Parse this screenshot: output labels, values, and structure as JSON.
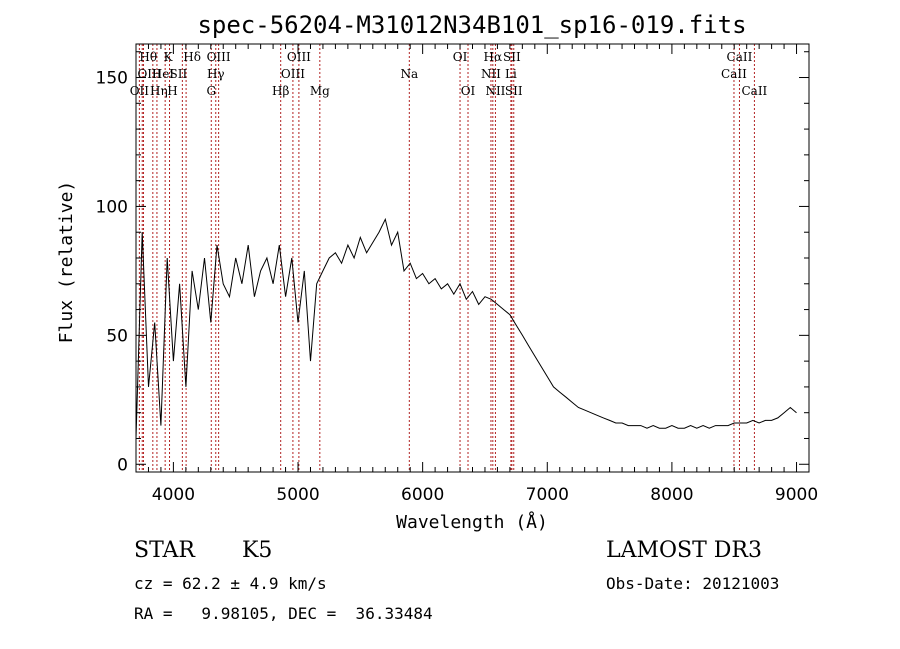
{
  "chart_data": {
    "type": "line",
    "title": "spec-56204-M31012N34B101_sp16-019.fits",
    "xlabel": "Wavelength (Å)",
    "ylabel": "Flux (relative)",
    "xlim": [
      3700,
      9100
    ],
    "ylim": [
      -3,
      163
    ],
    "xticks": [
      "4000",
      "5000",
      "6000",
      "7000",
      "8000",
      "9000"
    ],
    "yticks": [
      "0",
      "50",
      "100",
      "150"
    ],
    "x_tick_values": [
      4000,
      5000,
      6000,
      7000,
      8000,
      9000
    ],
    "y_tick_values": [
      0,
      50,
      100,
      150
    ],
    "series": [
      {
        "name": "flux",
        "color": "#000000",
        "x": [
          3700,
          3750,
          3800,
          3850,
          3900,
          3950,
          4000,
          4050,
          4100,
          4150,
          4200,
          4250,
          4300,
          4350,
          4400,
          4450,
          4500,
          4550,
          4600,
          4650,
          4700,
          4750,
          4800,
          4850,
          4900,
          4950,
          5000,
          5050,
          5100,
          5150,
          5200,
          5250,
          5300,
          5350,
          5400,
          5450,
          5500,
          5550,
          5600,
          5650,
          5700,
          5750,
          5800,
          5850,
          5900,
          5950,
          6000,
          6050,
          6100,
          6150,
          6200,
          6250,
          6300,
          6350,
          6400,
          6450,
          6500,
          6550,
          6600,
          6650,
          6700,
          6750,
          6800,
          6850,
          6900,
          6950,
          7000,
          7050,
          7100,
          7150,
          7200,
          7250,
          7300,
          7350,
          7400,
          7450,
          7500,
          7550,
          7600,
          7650,
          7700,
          7750,
          7800,
          7850,
          7900,
          7950,
          8000,
          8050,
          8100,
          8150,
          8200,
          8250,
          8300,
          8350,
          8400,
          8450,
          8500,
          8550,
          8600,
          8650,
          8700,
          8750,
          8800,
          8850,
          8900,
          8950,
          9000
        ],
        "y": [
          10,
          90,
          30,
          55,
          15,
          80,
          40,
          70,
          30,
          75,
          60,
          80,
          55,
          85,
          70,
          65,
          80,
          70,
          85,
          65,
          75,
          80,
          70,
          85,
          65,
          80,
          55,
          75,
          40,
          70,
          75,
          80,
          82,
          78,
          85,
          80,
          88,
          82,
          86,
          90,
          95,
          85,
          90,
          75,
          78,
          72,
          74,
          70,
          72,
          68,
          70,
          66,
          70,
          64,
          67,
          62,
          65,
          64,
          62,
          60,
          58,
          54,
          50,
          46,
          42,
          38,
          34,
          30,
          28,
          26,
          24,
          22,
          21,
          20,
          19,
          18,
          17,
          16,
          16,
          15,
          15,
          15,
          14,
          15,
          14,
          14,
          15,
          14,
          14,
          15,
          14,
          15,
          14,
          15,
          15,
          15,
          16,
          16,
          16,
          17,
          16,
          17,
          17,
          18,
          20,
          22,
          20
        ]
      }
    ],
    "lines": [
      {
        "label": "OII",
        "wl": 3727,
        "row": 2,
        "dx": 0
      },
      {
        "label": "Hθ",
        "wl": 3750,
        "row": 0,
        "dx": 6
      },
      {
        "label": "OIII",
        "wl": 3760,
        "row": 1,
        "dx": 6
      },
      {
        "label": "Hη",
        "wl": 3835,
        "row": 2,
        "dx": 6
      },
      {
        "label": "HeI",
        "wl": 3868,
        "row": 1,
        "dx": 6
      },
      {
        "label": "K",
        "wl": 3934,
        "row": 0,
        "dx": 3
      },
      {
        "label": "H",
        "wl": 3969,
        "row": 2,
        "dx": 3
      },
      {
        "label": "SII",
        "wl": 4072,
        "row": 1,
        "dx": -4
      },
      {
        "label": "Hδ",
        "wl": 4102,
        "row": 0,
        "dx": 6
      },
      {
        "label": "OIII",
        "wl": 4363,
        "row": 0,
        "dx": 0
      },
      {
        "label": "Hγ",
        "wl": 4340,
        "row": 1,
        "dx": 0
      },
      {
        "label": "G",
        "wl": 4304,
        "row": 2,
        "dx": 0
      },
      {
        "label": "Hβ",
        "wl": 4861,
        "row": 2,
        "dx": 0
      },
      {
        "label": "OIII",
        "wl": 5007,
        "row": 0,
        "dx": 0
      },
      {
        "label": "OIII",
        "wl": 4959,
        "row": 1,
        "dx": 0
      },
      {
        "label": "Mg",
        "wl": 5175,
        "row": 2,
        "dx": 0
      },
      {
        "label": "Na",
        "wl": 5893,
        "row": 1,
        "dx": 0
      },
      {
        "label": "OI",
        "wl": 6300,
        "row": 0,
        "dx": 0
      },
      {
        "label": "OI",
        "wl": 6364,
        "row": 2,
        "dx": 0
      },
      {
        "label": "Hα",
        "wl": 6563,
        "row": 0,
        "dx": 0
      },
      {
        "label": "NII",
        "wl": 6548,
        "row": 1,
        "dx": 0
      },
      {
        "label": "NII",
        "wl": 6584,
        "row": 2,
        "dx": 0
      },
      {
        "label": "SII",
        "wl": 6716,
        "row": 0,
        "dx": 0
      },
      {
        "label": "Li",
        "wl": 6708,
        "row": 1,
        "dx": 0
      },
      {
        "label": "SII",
        "wl": 6731,
        "row": 2,
        "dx": 0
      },
      {
        "label": "CaII",
        "wl": 8542,
        "row": 0,
        "dx": 0
      },
      {
        "label": "CaII",
        "wl": 8498,
        "row": 1,
        "dx": 0
      },
      {
        "label": "CaII",
        "wl": 8662,
        "row": 2,
        "dx": 0
      }
    ]
  },
  "info": {
    "object_class": "STAR",
    "subclass": "K5",
    "survey": "LAMOST DR3",
    "cz": "cz = 62.2 ± 4.9 km/s",
    "obs_date": "Obs-Date: 20121003",
    "coords": "RA =   9.98105, DEC =  36.33484"
  }
}
